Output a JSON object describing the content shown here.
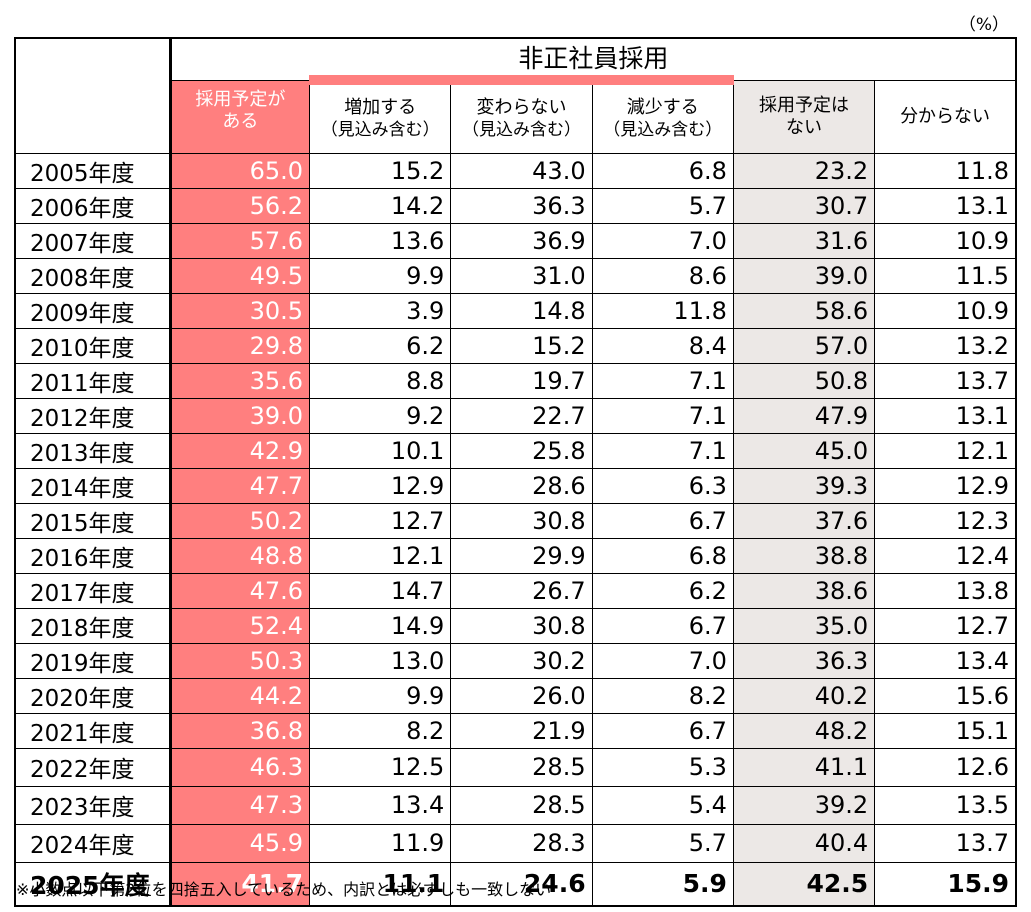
{
  "unit_label": "（%）",
  "title": "非正社員採用",
  "columns": [
    {
      "label": "採用予定が\nある",
      "sub": ""
    },
    {
      "label": "増加する",
      "sub": "（見込み含む）"
    },
    {
      "label": "変わらない",
      "sub": "（見込み含む）"
    },
    {
      "label": "減少する",
      "sub": "（見込み含む）"
    },
    {
      "label": "採用予定は\nない",
      "sub": ""
    },
    {
      "label": "分からない",
      "sub": ""
    }
  ],
  "note": "※小数点以下第2位を四捨五入しているため、内訳とは必ずしも一致しない",
  "colors": {
    "accent_pink": "#ff7f7f",
    "accent_gray": "#ece8e6"
  },
  "chart_data": {
    "type": "table",
    "categories": [
      "2005年度",
      "2006年度",
      "2007年度",
      "2008年度",
      "2009年度",
      "2010年度",
      "2011年度",
      "2012年度",
      "2013年度",
      "2014年度",
      "2015年度",
      "2016年度",
      "2017年度",
      "2018年度",
      "2019年度",
      "2020年度",
      "2021年度",
      "2022年度",
      "2023年度",
      "2024年度",
      "2025年度"
    ],
    "rows": [
      [
        "65.0",
        "15.2",
        "43.0",
        "6.8",
        "23.2",
        "11.8"
      ],
      [
        "56.2",
        "14.2",
        "36.3",
        "5.7",
        "30.7",
        "13.1"
      ],
      [
        "57.6",
        "13.6",
        "36.9",
        "7.0",
        "31.6",
        "10.9"
      ],
      [
        "49.5",
        "9.9",
        "31.0",
        "8.6",
        "39.0",
        "11.5"
      ],
      [
        "30.5",
        "3.9",
        "14.8",
        "11.8",
        "58.6",
        "10.9"
      ],
      [
        "29.8",
        "6.2",
        "15.2",
        "8.4",
        "57.0",
        "13.2"
      ],
      [
        "35.6",
        "8.8",
        "19.7",
        "7.1",
        "50.8",
        "13.7"
      ],
      [
        "39.0",
        "9.2",
        "22.7",
        "7.1",
        "47.9",
        "13.1"
      ],
      [
        "42.9",
        "10.1",
        "25.8",
        "7.1",
        "45.0",
        "12.1"
      ],
      [
        "47.7",
        "12.9",
        "28.6",
        "6.3",
        "39.3",
        "12.9"
      ],
      [
        "50.2",
        "12.7",
        "30.8",
        "6.7",
        "37.6",
        "12.3"
      ],
      [
        "48.8",
        "12.1",
        "29.9",
        "6.8",
        "38.8",
        "12.4"
      ],
      [
        "47.6",
        "14.7",
        "26.7",
        "6.2",
        "38.6",
        "13.8"
      ],
      [
        "52.4",
        "14.9",
        "30.8",
        "6.7",
        "35.0",
        "12.7"
      ],
      [
        "50.3",
        "13.0",
        "30.2",
        "7.0",
        "36.3",
        "13.4"
      ],
      [
        "44.2",
        "9.9",
        "26.0",
        "8.2",
        "40.2",
        "15.6"
      ],
      [
        "36.8",
        "8.2",
        "21.9",
        "6.7",
        "48.2",
        "15.1"
      ],
      [
        "46.3",
        "12.5",
        "28.5",
        "5.3",
        "41.1",
        "12.6"
      ],
      [
        "47.3",
        "13.4",
        "28.5",
        "5.4",
        "39.2",
        "13.5"
      ],
      [
        "45.9",
        "11.9",
        "28.3",
        "5.7",
        "40.4",
        "13.7"
      ],
      [
        "41.7",
        "11.1",
        "24.6",
        "5.9",
        "42.5",
        "15.9"
      ]
    ]
  }
}
